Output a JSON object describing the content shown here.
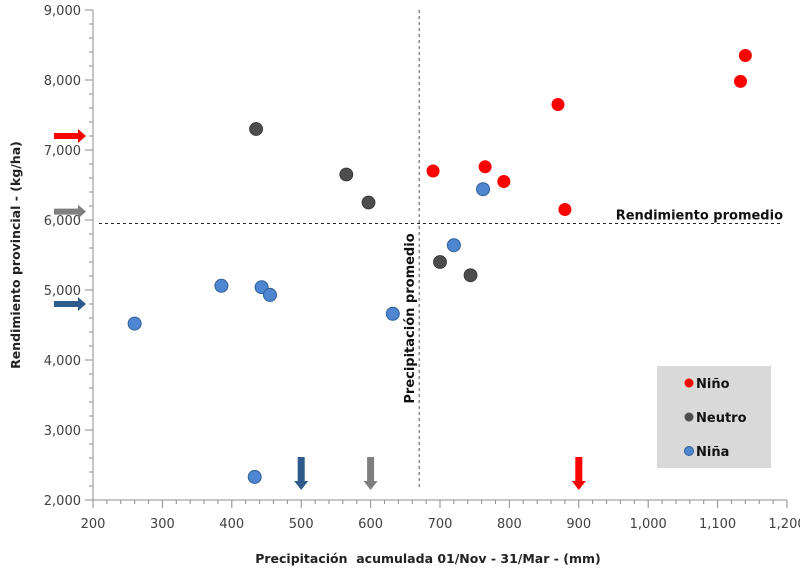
{
  "chart_data": {
    "type": "scatter",
    "title": "",
    "xlabel": "Precipitación  acumulada 01/Nov - 31/Mar - (mm)",
    "ylabel": "Rendimiento provincial - (kg/ha)",
    "xlim": [
      200,
      1200
    ],
    "ylim": [
      2000,
      9000
    ],
    "x_ticks": [
      200,
      300,
      400,
      500,
      600,
      700,
      800,
      900,
      1000,
      1100,
      1200
    ],
    "x_tick_labels": [
      "200",
      "300",
      "400",
      "500",
      "600",
      "700",
      "800",
      "900",
      "1,000",
      "1,100",
      "1,200"
    ],
    "y_ticks": [
      2000,
      3000,
      4000,
      5000,
      6000,
      7000,
      8000,
      9000
    ],
    "y_tick_labels": [
      "2,000",
      "3,000",
      "4,000",
      "5,000",
      "6,000",
      "7,000",
      "8,000",
      "9,000"
    ],
    "grid": false,
    "legend_position": "bottom-right",
    "series": [
      {
        "name": "Niño",
        "color": "#ff0000",
        "points": [
          [
            690,
            6700
          ],
          [
            765,
            6760
          ],
          [
            792,
            6550
          ],
          [
            870,
            7650
          ],
          [
            880,
            6150
          ],
          [
            1133,
            7980
          ],
          [
            1140,
            8350
          ]
        ]
      },
      {
        "name": "Neutro",
        "color": "#4d4d4d",
        "points": [
          [
            435,
            7300
          ],
          [
            565,
            6650
          ],
          [
            597,
            6250
          ],
          [
            700,
            5400
          ],
          [
            744,
            5210
          ]
        ]
      },
      {
        "name": "Niña",
        "color": "#4f86d1",
        "points": [
          [
            260,
            4520
          ],
          [
            385,
            5060
          ],
          [
            443,
            5040
          ],
          [
            455,
            4930
          ],
          [
            632,
            4660
          ],
          [
            720,
            5640
          ],
          [
            762,
            6440
          ],
          [
            433,
            2330
          ]
        ]
      }
    ],
    "reference_lines": [
      {
        "orientation": "horizontal",
        "value": 5950,
        "label": "Rendimiento promedio"
      },
      {
        "orientation": "vertical",
        "value": 670,
        "label": "Precipitación promedio"
      }
    ],
    "arrows": [
      {
        "axis": "y",
        "value": 7200,
        "color": "#ff0000",
        "series": "Niño"
      },
      {
        "axis": "y",
        "value": 6120,
        "color": "#7f7f7f",
        "series": "Neutro"
      },
      {
        "axis": "y",
        "value": 4800,
        "color": "#2e5b8c",
        "series": "Niña"
      },
      {
        "axis": "x",
        "value": 500,
        "color": "#2e5b8c",
        "series": "Niña"
      },
      {
        "axis": "x",
        "value": 600,
        "color": "#7f7f7f",
        "series": "Neutro"
      },
      {
        "axis": "x",
        "value": 900,
        "color": "#ff0000",
        "series": "Niño"
      }
    ]
  }
}
